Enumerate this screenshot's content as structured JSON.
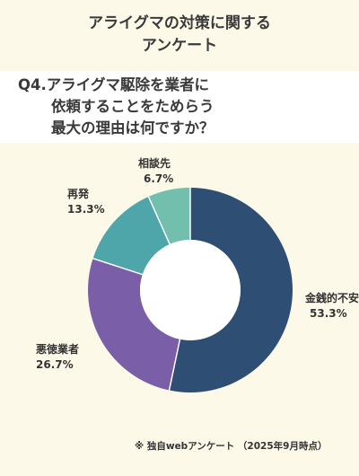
{
  "header": {
    "title_line1": "アライグマの対策に関する",
    "title_line2": "アンケート"
  },
  "question": {
    "line1": "Q4.アライグマ駆除を業者に",
    "line2": "依頼することをためらう",
    "line3": "最大の理由は何ですか？"
  },
  "chart_data": {
    "type": "pie",
    "donut": true,
    "unit": "%",
    "slices": [
      {
        "label": "金銭的不安",
        "value": 53.3,
        "display": "53.3%",
        "color": "#2f4e74"
      },
      {
        "label": "悪徳業者",
        "value": 26.7,
        "display": "26.7%",
        "color": "#7b5ea8"
      },
      {
        "label": "再発",
        "value": 13.3,
        "display": "13.3%",
        "color": "#4ea5aa"
      },
      {
        "label": "相談先",
        "value": 6.7,
        "display": "6.7%",
        "color": "#72bfae"
      }
    ],
    "legend": "none"
  },
  "footnote": "※ 独自webアンケート （2025年9月時点）"
}
